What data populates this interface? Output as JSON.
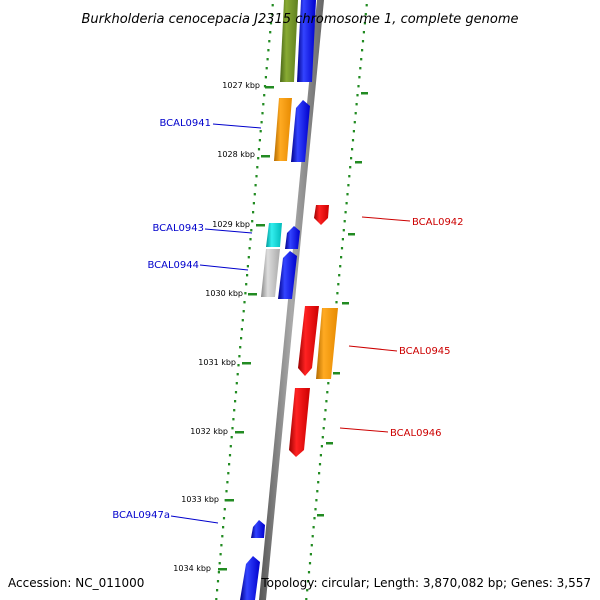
{
  "title": "Burkholderia cenocepacia J2315 chromosome 1, complete genome",
  "footer": {
    "accession": "Accession: NC_011000",
    "topology": "Topology: circular; Length: 3,870,082 bp; Genes: 3,557"
  },
  "colors": {
    "forward_strand": "#0000ee",
    "reverse_strand": "#ee0000",
    "cds_orange": "#ff9900",
    "cds_olive": "#6b8e23",
    "cds_cyan": "#00cccc",
    "cds_grey": "#bbbbbb",
    "dotted_ring": "#228b22",
    "backbone": "#888888",
    "label_forward": "#0000cc",
    "label_reverse": "#cc0000"
  },
  "scale_labels": [
    "1027 kbp",
    "1028 kbp",
    "1029 kbp",
    "1030 kbp",
    "1031 kbp",
    "1032 kbp",
    "1033 kbp",
    "1034 kbp"
  ],
  "gene_labels": [
    {
      "text": "BCAL0941",
      "strand": "forward"
    },
    {
      "text": "BCAL0942",
      "strand": "reverse"
    },
    {
      "text": "BCAL0943",
      "strand": "forward"
    },
    {
      "text": "BCAL0944",
      "strand": "forward"
    },
    {
      "text": "BCAL0945",
      "strand": "reverse"
    },
    {
      "text": "BCAL0946",
      "strand": "reverse"
    },
    {
      "text": "BCAL0947a",
      "strand": "forward"
    }
  ]
}
